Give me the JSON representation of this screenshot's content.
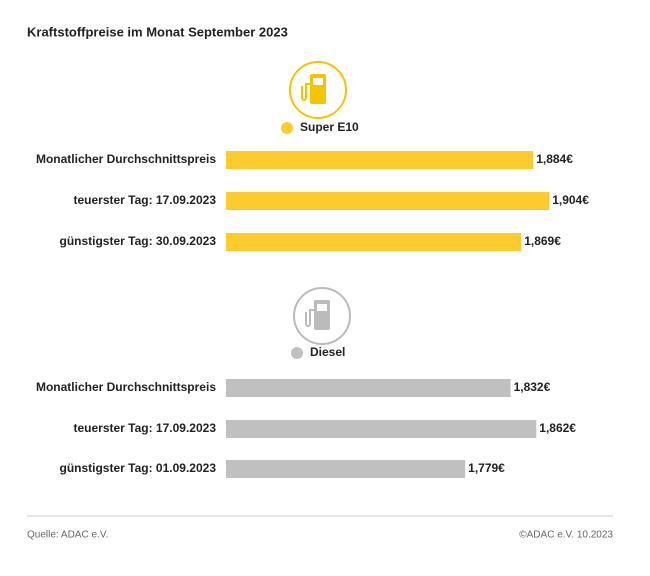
{
  "title": "Kraftstoffpreise im Monat September 2023",
  "source": "Quelle: ADAC e.V.",
  "copyright": "©ADAC e.V. 10.2023",
  "chart_data": [
    {
      "type": "bar",
      "orientation": "horizontal",
      "categories": [
        "Monatlicher Durchschnittspreis",
        "teuerster Tag: 17.09.2023",
        "günstigster Tag: 30.09.2023"
      ],
      "series": [
        {
          "name": "Super E10",
          "color": "#fccb2e",
          "values": [
            1.884,
            1.904,
            1.869
          ],
          "value_labels": [
            "1,884€",
            "1,904€",
            "1,869€"
          ]
        }
      ],
      "xlim": [
        1.5,
        1.95
      ]
    },
    {
      "type": "bar",
      "orientation": "horizontal",
      "categories": [
        "Monatlicher Durchschnittspreis",
        "teuerster Tag: 17.09.2023",
        "günstigster Tag: 01.09.2023"
      ],
      "series": [
        {
          "name": "Diesel",
          "color": "#c0c0c0",
          "values": [
            1.832,
            1.862,
            1.779
          ],
          "value_labels": [
            "1,832€",
            "1,862€",
            "1,779€"
          ]
        }
      ],
      "xlim": [
        1.5,
        1.92
      ]
    }
  ]
}
